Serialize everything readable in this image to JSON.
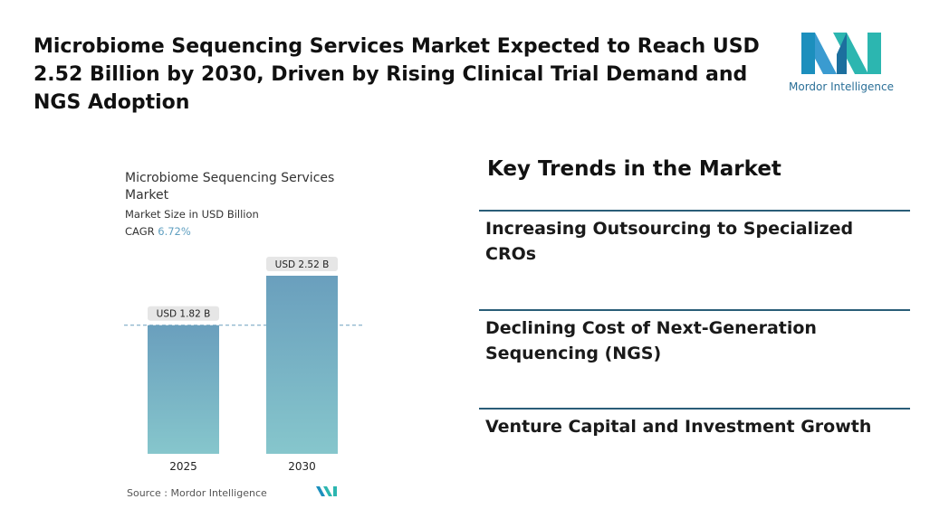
{
  "header": {
    "title": "Microbiome Sequencing Services Market Expected to Reach USD 2.52 Billion by 2030, Driven by Rising Clinical Trial Demand and NGS Adoption",
    "logo_text": "Mordor Intelligence"
  },
  "chart_data": {
    "type": "bar",
    "title": "Microbiome Sequencing Services Market",
    "subtitle": "Market Size in USD Billion",
    "cagr_label": "CAGR",
    "cagr_value": "6.72%",
    "categories": [
      "2025",
      "2030"
    ],
    "values": [
      1.82,
      2.52
    ],
    "value_labels": [
      "USD 1.82 B",
      "USD 2.52 B"
    ],
    "color": "#6a9fbd",
    "source": "Source : Mordor Intelligence"
  },
  "trends": {
    "title": "Key Trends in the Market",
    "items": [
      "Increasing Outsourcing to Specialized CROs",
      "Declining Cost of Next-Generation Sequencing (NGS)",
      "Venture Capital and Investment Growth"
    ]
  }
}
